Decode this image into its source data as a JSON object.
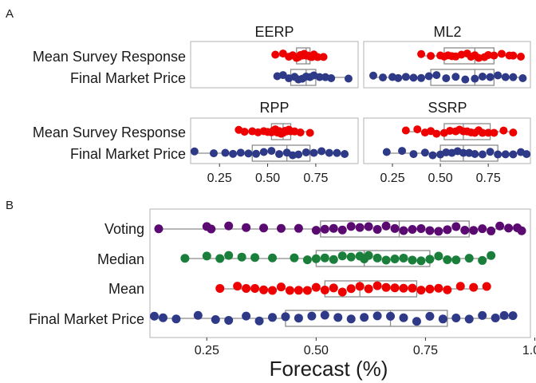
{
  "colors": {
    "survey": "#ee0000",
    "market": "#2e3a87",
    "voting": "#5b0a72",
    "median": "#1a7f3a",
    "mean": "#ee0000",
    "box": "#8c8c8c",
    "frame": "#b3b3b3"
  },
  "labels": {
    "panel_a": "A",
    "panel_b": "B",
    "mean_survey": "Mean Survey Response",
    "final_market": "Final Market Price",
    "voting": "Voting",
    "median": "Median",
    "mean": "Mean",
    "xlabel_b": "Forecast (%)"
  },
  "chart_data": [
    {
      "type": "scatter",
      "subtype": "box-jitter",
      "panel": "A",
      "xlim": [
        0.1,
        0.97
      ],
      "x_ticks": [
        "0.25",
        "0.50",
        "0.75"
      ],
      "x_tick_values": [
        0.25,
        0.5,
        0.75
      ],
      "grid": false,
      "facets": [
        {
          "title": "EERP",
          "rows": [
            {
              "label": "Mean Survey Response",
              "color_key": "survey",
              "box": {
                "min": 0.55,
                "q1": 0.65,
                "median": 0.7,
                "q3": 0.72,
                "max": 0.8
              },
              "points": [
                0.54,
                0.58,
                0.61,
                0.63,
                0.65,
                0.66,
                0.67,
                0.68,
                0.69,
                0.7,
                0.71,
                0.72,
                0.73,
                0.74,
                0.76,
                0.79
              ]
            },
            {
              "label": "Final Market Price",
              "color_key": "market",
              "box": {
                "min": 0.55,
                "q1": 0.62,
                "median": 0.7,
                "q3": 0.75,
                "max": 0.92
              },
              "points": [
                0.55,
                0.58,
                0.61,
                0.64,
                0.66,
                0.68,
                0.7,
                0.72,
                0.74,
                0.77,
                0.8,
                0.83,
                0.92
              ]
            }
          ]
        },
        {
          "title": "ML2",
          "rows": [
            {
              "label": "Mean Survey Response",
              "color_key": "survey",
              "box": {
                "min": 0.4,
                "q1": 0.52,
                "median": 0.68,
                "q3": 0.78,
                "max": 0.92
              },
              "points": [
                0.4,
                0.45,
                0.5,
                0.52,
                0.54,
                0.56,
                0.58,
                0.61,
                0.64,
                0.66,
                0.68,
                0.7,
                0.73,
                0.75,
                0.78,
                0.82,
                0.86,
                0.88,
                0.92
              ]
            },
            {
              "label": "Final Market Price",
              "color_key": "market",
              "box": {
                "min": 0.15,
                "q1": 0.45,
                "median": 0.68,
                "q3": 0.78,
                "max": 0.93
              },
              "points": [
                0.15,
                0.2,
                0.25,
                0.28,
                0.32,
                0.36,
                0.4,
                0.44,
                0.48,
                0.53,
                0.58,
                0.63,
                0.68,
                0.72,
                0.76,
                0.8,
                0.84,
                0.88,
                0.93
              ]
            }
          ]
        },
        {
          "title": "RPP",
          "rows": [
            {
              "label": "Mean Survey Response",
              "color_key": "survey",
              "box": {
                "min": 0.35,
                "q1": 0.52,
                "median": 0.58,
                "q3": 0.62,
                "max": 0.72
              },
              "points": [
                0.35,
                0.38,
                0.42,
                0.45,
                0.48,
                0.5,
                0.52,
                0.53,
                0.54,
                0.55,
                0.56,
                0.57,
                0.58,
                0.59,
                0.6,
                0.61,
                0.62,
                0.64,
                0.67,
                0.72
              ]
            },
            {
              "label": "Final Market Price",
              "color_key": "market",
              "box": {
                "min": 0.12,
                "q1": 0.42,
                "median": 0.6,
                "q3": 0.72,
                "max": 0.9
              },
              "points": [
                0.12,
                0.22,
                0.28,
                0.32,
                0.36,
                0.4,
                0.44,
                0.48,
                0.52,
                0.56,
                0.6,
                0.63,
                0.66,
                0.7,
                0.74,
                0.78,
                0.82,
                0.86,
                0.9
              ]
            }
          ]
        },
        {
          "title": "SSRP",
          "rows": [
            {
              "label": "Mean Survey Response",
              "color_key": "survey",
              "box": {
                "min": 0.32,
                "q1": 0.52,
                "median": 0.62,
                "q3": 0.76,
                "max": 0.88
              },
              "points": [
                0.32,
                0.38,
                0.42,
                0.45,
                0.48,
                0.52,
                0.55,
                0.58,
                0.6,
                0.62,
                0.64,
                0.66,
                0.68,
                0.7,
                0.72,
                0.75,
                0.78,
                0.83,
                0.88
              ]
            },
            {
              "label": "Final Market Price",
              "color_key": "market",
              "box": {
                "min": 0.22,
                "q1": 0.5,
                "median": 0.62,
                "q3": 0.8,
                "max": 0.95
              },
              "points": [
                0.22,
                0.3,
                0.36,
                0.42,
                0.46,
                0.5,
                0.53,
                0.56,
                0.59,
                0.62,
                0.65,
                0.68,
                0.72,
                0.76,
                0.8,
                0.84,
                0.88,
                0.92,
                0.95
              ]
            }
          ]
        }
      ]
    },
    {
      "type": "scatter",
      "subtype": "box-jitter",
      "panel": "B",
      "xlim": [
        0.12,
        0.99
      ],
      "x_ticks": [
        "0.25",
        "0.50",
        "0.75",
        "1.00"
      ],
      "x_tick_values": [
        0.25,
        0.5,
        0.75,
        1.0
      ],
      "xlabel": "Forecast (%)",
      "grid": false,
      "rows": [
        {
          "label": "Voting",
          "color_key": "voting",
          "box": {
            "min": 0.14,
            "q1": 0.51,
            "median": 0.69,
            "q3": 0.85,
            "max": 0.97
          },
          "points": [
            0.14,
            0.25,
            0.26,
            0.3,
            0.34,
            0.38,
            0.42,
            0.46,
            0.5,
            0.52,
            0.54,
            0.56,
            0.58,
            0.6,
            0.62,
            0.64,
            0.66,
            0.68,
            0.7,
            0.72,
            0.74,
            0.76,
            0.78,
            0.8,
            0.82,
            0.84,
            0.86,
            0.88,
            0.9,
            0.92,
            0.94,
            0.96,
            0.97
          ]
        },
        {
          "label": "Median",
          "color_key": "median",
          "box": {
            "min": 0.2,
            "q1": 0.5,
            "median": 0.61,
            "q3": 0.76,
            "max": 0.9
          },
          "points": [
            0.2,
            0.25,
            0.28,
            0.3,
            0.33,
            0.36,
            0.4,
            0.45,
            0.48,
            0.5,
            0.52,
            0.54,
            0.56,
            0.58,
            0.6,
            0.61,
            0.62,
            0.64,
            0.66,
            0.68,
            0.7,
            0.72,
            0.74,
            0.76,
            0.78,
            0.8,
            0.82,
            0.85,
            0.88,
            0.9
          ]
        },
        {
          "label": "Mean",
          "color_key": "mean",
          "box": {
            "min": 0.28,
            "q1": 0.52,
            "median": 0.6,
            "q3": 0.73,
            "max": 0.89
          },
          "points": [
            0.28,
            0.32,
            0.34,
            0.36,
            0.38,
            0.4,
            0.42,
            0.44,
            0.46,
            0.48,
            0.5,
            0.52,
            0.54,
            0.56,
            0.58,
            0.6,
            0.62,
            0.64,
            0.66,
            0.68,
            0.7,
            0.72,
            0.74,
            0.76,
            0.78,
            0.8,
            0.83,
            0.86,
            0.89
          ]
        },
        {
          "label": "Final Market Price",
          "color_key": "market",
          "box": {
            "min": 0.13,
            "q1": 0.43,
            "median": 0.67,
            "q3": 0.8,
            "max": 0.95
          },
          "points": [
            0.13,
            0.15,
            0.18,
            0.23,
            0.27,
            0.3,
            0.34,
            0.37,
            0.4,
            0.43,
            0.46,
            0.49,
            0.52,
            0.55,
            0.58,
            0.61,
            0.64,
            0.67,
            0.7,
            0.73,
            0.76,
            0.79,
            0.82,
            0.85,
            0.88,
            0.91,
            0.93,
            0.95
          ]
        }
      ]
    }
  ]
}
